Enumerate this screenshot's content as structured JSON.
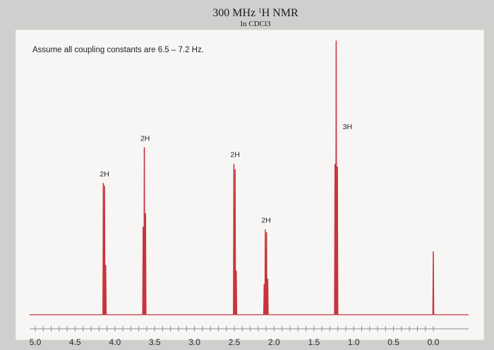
{
  "chart_data": {
    "type": "line",
    "title": "300 MHz ",
    "title_super": "1",
    "title_tail": "H NMR",
    "subtitle": "In CDCl3",
    "annotation": "Assume all coupling constants are 6.5 – 7.2 Hz.",
    "xlabel": "",
    "ylabel": "",
    "x_reversed": true,
    "xlim": [
      5.0,
      0.0
    ],
    "ylim": [
      0,
      100
    ],
    "x_ticks": [
      "5.0",
      "4.5",
      "4.0",
      "3.5",
      "3.0",
      "2.5",
      "2.0",
      "1.5",
      "1.0",
      "0.5",
      "0.0"
    ],
    "x_tick_values": [
      5.0,
      4.5,
      4.0,
      3.5,
      3.0,
      2.5,
      2.0,
      1.5,
      1.0,
      0.5,
      0.0
    ],
    "grid": false,
    "line_color": "#c8343e",
    "signals": [
      {
        "id": "s1",
        "integration": "2H",
        "shift": 4.13,
        "multiplicity": "triplet",
        "peaks": [
          {
            "x": 4.145,
            "y": 48
          },
          {
            "x": 4.13,
            "y": 47
          },
          {
            "x": 4.115,
            "y": 18
          }
        ]
      },
      {
        "id": "s2",
        "integration": "2H",
        "shift": 3.62,
        "multiplicity": "triplet",
        "peaks": [
          {
            "x": 3.645,
            "y": 32
          },
          {
            "x": 3.63,
            "y": 61
          },
          {
            "x": 3.615,
            "y": 37
          }
        ]
      },
      {
        "id": "s3",
        "integration": "2H",
        "shift": 2.49,
        "multiplicity": "triplet",
        "peaks": [
          {
            "x": 2.505,
            "y": 55
          },
          {
            "x": 2.49,
            "y": 53
          },
          {
            "x": 2.475,
            "y": 16
          }
        ]
      },
      {
        "id": "s4",
        "integration": "2H",
        "shift": 2.1,
        "multiplicity": "multiplet",
        "peaks": [
          {
            "x": 2.125,
            "y": 11
          },
          {
            "x": 2.11,
            "y": 31
          },
          {
            "x": 2.095,
            "y": 30
          },
          {
            "x": 2.08,
            "y": 13
          }
        ]
      },
      {
        "id": "s5",
        "integration": "3H",
        "shift": 1.22,
        "multiplicity": "triplet",
        "peaks": [
          {
            "x": 1.235,
            "y": 55
          },
          {
            "x": 1.22,
            "y": 100
          },
          {
            "x": 1.205,
            "y": 54
          }
        ]
      },
      {
        "id": "tms",
        "integration": "",
        "shift": 0.0,
        "multiplicity": "singlet",
        "peaks": [
          {
            "x": 0.0,
            "y": 23
          }
        ]
      }
    ]
  }
}
